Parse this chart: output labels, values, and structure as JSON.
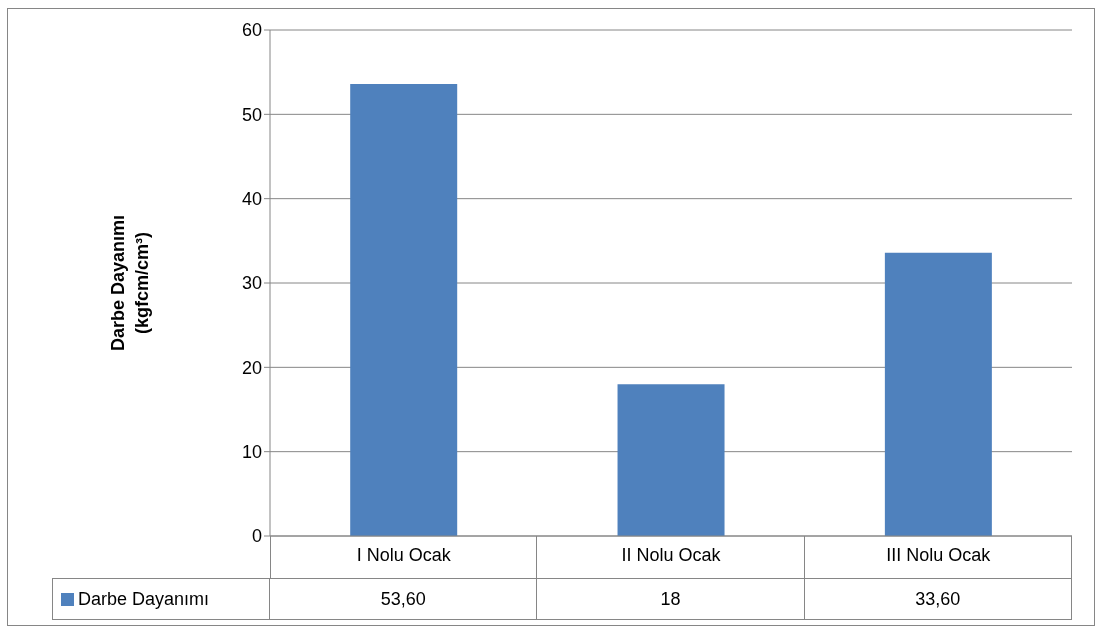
{
  "chart_data": {
    "type": "bar",
    "ylabel": "Darbe Dayanımı (kgfcm/cm³)",
    "categories": [
      "I Nolu Ocak",
      "II Nolu Ocak",
      "III Nolu Ocak"
    ],
    "series": [
      {
        "name": "Darbe Dayanımı",
        "color": "#4f81bd",
        "values": [
          53.6,
          18,
          33.6
        ],
        "value_labels": [
          "53,60",
          "18",
          "33,60"
        ]
      }
    ],
    "ylim": [
      0,
      60
    ],
    "yticks": [
      0,
      10,
      20,
      30,
      40,
      50,
      60
    ],
    "grid": "y",
    "legend": "bottom left"
  }
}
